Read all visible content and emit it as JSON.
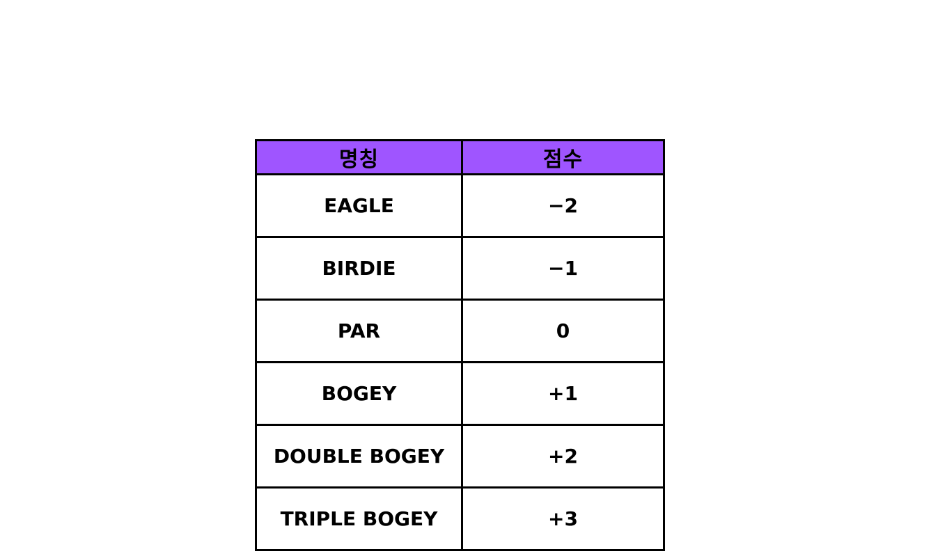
{
  "table": {
    "header_bg": "#9f55ff",
    "border_color": "#000000",
    "headers": {
      "name": "명칭",
      "score": "점수"
    },
    "rows": [
      {
        "name": "EAGLE",
        "score": "−2"
      },
      {
        "name": "BIRDIE",
        "score": "−1"
      },
      {
        "name": "PAR",
        "score": "0"
      },
      {
        "name": "BOGEY",
        "score": "+1"
      },
      {
        "name": "DOUBLE BOGEY",
        "score": "+2"
      },
      {
        "name": "TRIPLE BOGEY",
        "score": "+3"
      }
    ]
  }
}
